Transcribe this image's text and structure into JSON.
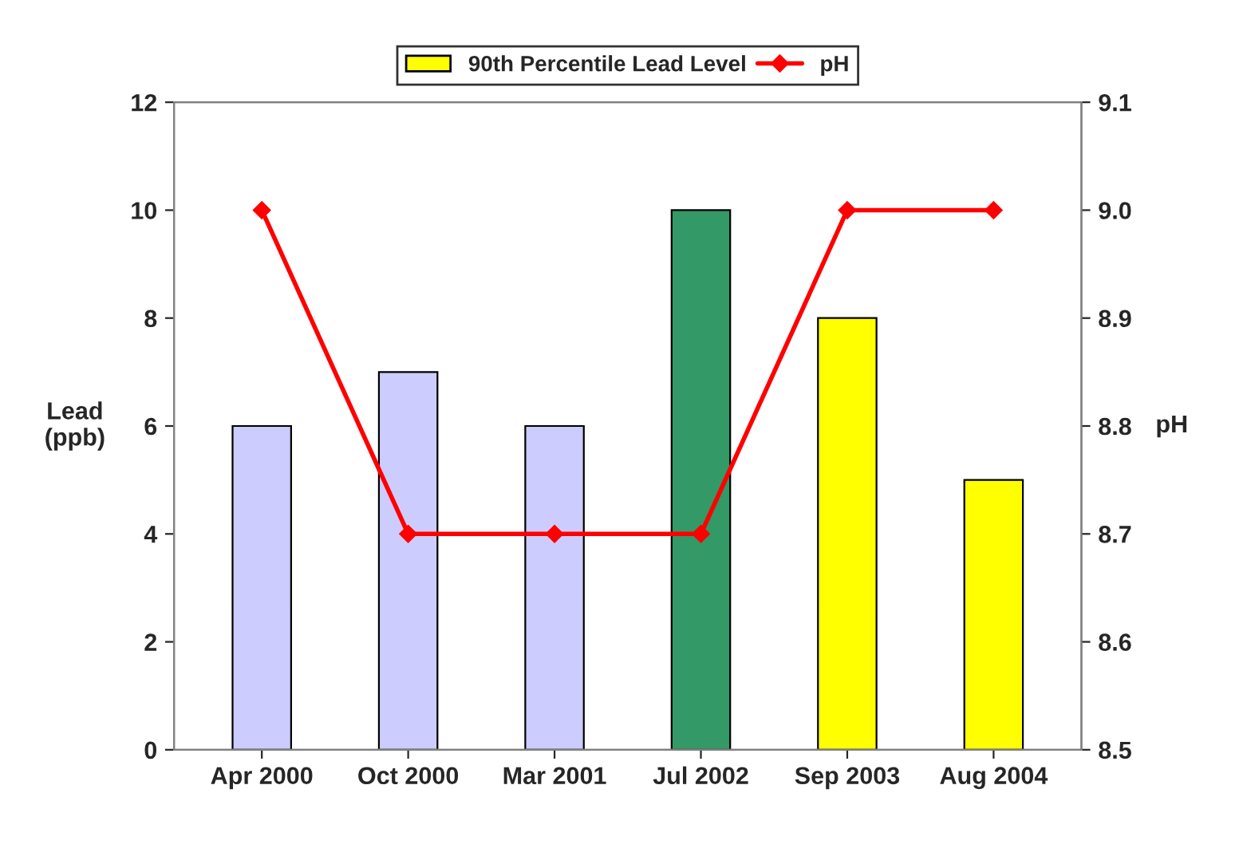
{
  "chart_data": {
    "type": "bar",
    "categories": [
      "Apr 2000",
      "Oct 2000",
      "Mar 2001",
      "Jul 2002",
      "Sep 2003",
      "Aug 2004"
    ],
    "series": [
      {
        "name": "90th Percentile Lead Level",
        "color": "#ffff00",
        "colors": [
          "#ccccff",
          "#ccccff",
          "#ccccff",
          "#339966",
          "#ffff00",
          "#ffff00"
        ],
        "values": [
          6,
          7,
          6,
          10,
          8,
          5
        ]
      },
      {
        "name": "pH",
        "type": "line",
        "axis": "y2",
        "color": "#ff0000",
        "values": [
          9.0,
          8.7,
          8.7,
          8.7,
          9.0,
          9.0
        ]
      }
    ],
    "ylabel": "Lead\n(ppb)",
    "y2label": "pH",
    "ylim": [
      0,
      12
    ],
    "yticks": [
      0,
      2,
      4,
      6,
      8,
      10,
      12
    ],
    "y2lim": [
      8.5,
      9.1
    ],
    "y2ticks": [
      8.5,
      8.6,
      8.7,
      8.8,
      8.9,
      {
        "value": 9.0,
        "label": "9.0"
      },
      9.1
    ],
    "legend": "top",
    "marker": "diamond",
    "line_style": "solid",
    "grid": false
  }
}
